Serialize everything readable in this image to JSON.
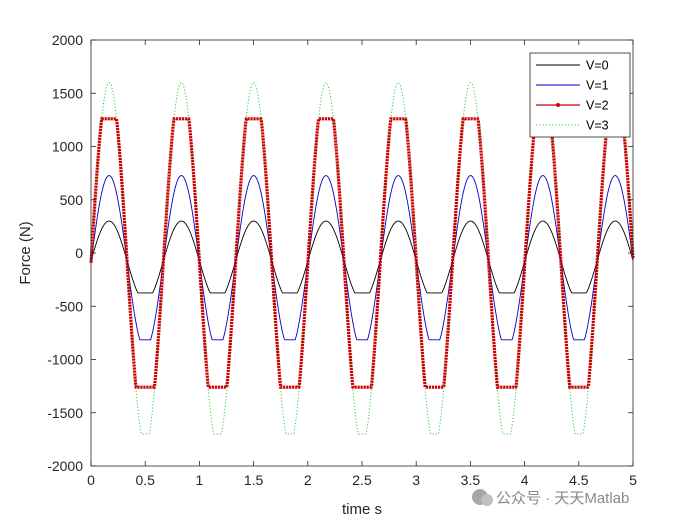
{
  "watermark": "公众号 · 天天Matlab",
  "chart_data": {
    "type": "line",
    "title": "",
    "xlabel": "time  s",
    "ylabel": "Force  (N)",
    "xlim": [
      0,
      5
    ],
    "ylim": [
      -2000,
      2000
    ],
    "xticks": [
      0,
      0.5,
      1,
      1.5,
      2,
      2.5,
      3,
      3.5,
      4,
      4.5,
      5
    ],
    "xtick_labels": [
      "0",
      "0.5",
      "1",
      "1.5",
      "2",
      "2.5",
      "3",
      "3.5",
      "4",
      "4.5",
      "5"
    ],
    "yticks": [
      -2000,
      -1500,
      -1000,
      -500,
      0,
      500,
      1000,
      1500,
      2000
    ],
    "ytick_labels": [
      "-2000",
      "-1500",
      "-1000",
      "-500",
      "0",
      "500",
      "1000",
      "1500",
      "2000"
    ],
    "grid": false,
    "legend_position": "top-right",
    "period": 0.667,
    "series": [
      {
        "name": "V=0",
        "color": "#000000",
        "style": "solid",
        "offset": -75,
        "amplitude": 375,
        "clip_max": 375,
        "clip_min": -375
      },
      {
        "name": "V=1",
        "color": "#0000cc",
        "style": "solid",
        "offset": -88,
        "amplitude": 815,
        "clip_max": 815,
        "clip_min": -815
      },
      {
        "name": "V=2",
        "color": "#cc0000",
        "style": "dotted-marker",
        "offset": -90,
        "amplitude": 1700,
        "clip_max": 1260,
        "clip_min": -1260
      },
      {
        "name": "V=3",
        "color": "#33cc33",
        "style": "dotted",
        "offset": -100,
        "amplitude": 1700,
        "clip_max": 1700,
        "clip_min": -1700
      }
    ]
  }
}
